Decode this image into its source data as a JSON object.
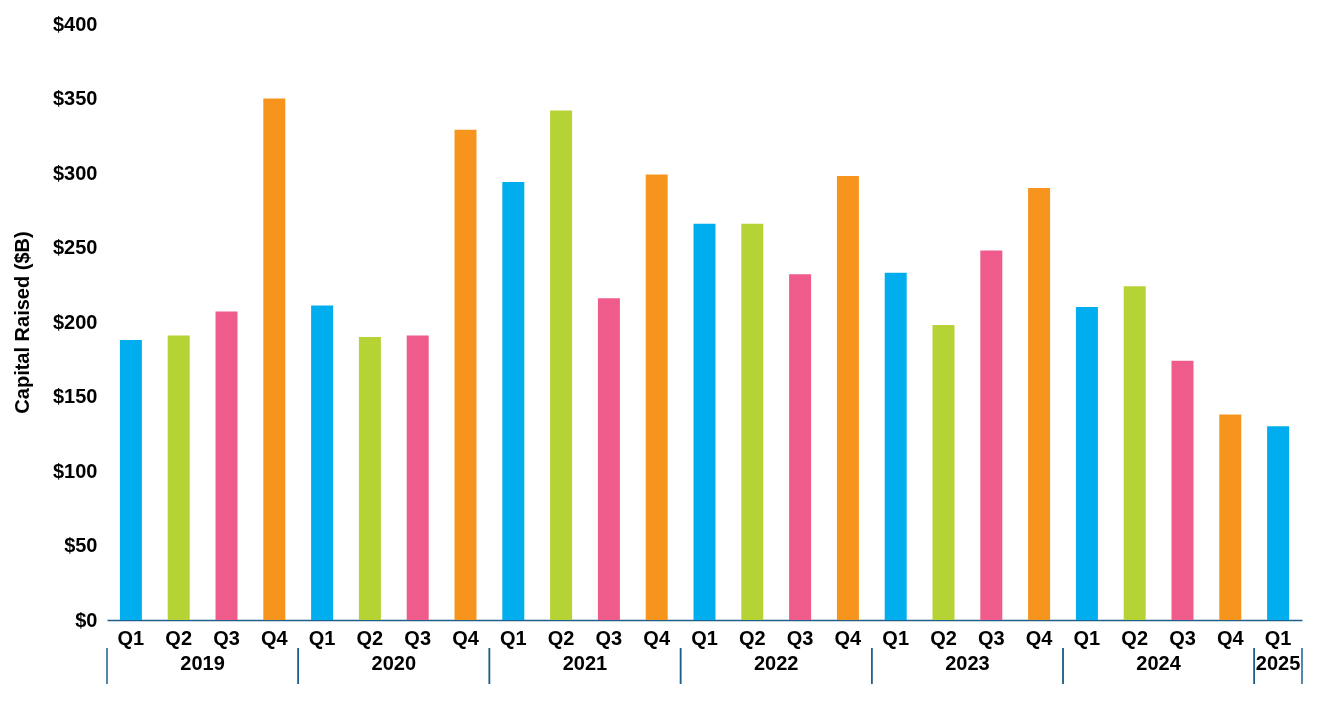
{
  "chart_data": {
    "type": "bar",
    "ylabel": "Capital Raised ($B)",
    "categories": [
      "Q1",
      "Q2",
      "Q3",
      "Q4",
      "Q1",
      "Q2",
      "Q3",
      "Q4",
      "Q1",
      "Q2",
      "Q3",
      "Q4",
      "Q1",
      "Q2",
      "Q3",
      "Q4",
      "Q1",
      "Q2",
      "Q3",
      "Q4",
      "Q1",
      "Q2",
      "Q3",
      "Q4",
      "Q1"
    ],
    "values": [
      188,
      191,
      207,
      350,
      211,
      190,
      191,
      329,
      294,
      342,
      216,
      299,
      266,
      266,
      232,
      298,
      233,
      198,
      248,
      290,
      210,
      224,
      174,
      138,
      130
    ],
    "colors": [
      "#00aeef",
      "#b5d334",
      "#ef5b8a",
      "#f7941d",
      "#00aeef",
      "#b5d334",
      "#ef5b8a",
      "#f7941d",
      "#00aeef",
      "#b5d334",
      "#ef5b8a",
      "#f7941d",
      "#00aeef",
      "#b5d334",
      "#ef5b8a",
      "#f7941d",
      "#00aeef",
      "#b5d334",
      "#ef5b8a",
      "#f7941d",
      "#00aeef",
      "#b5d334",
      "#ef5b8a",
      "#f7941d",
      "#00aeef"
    ],
    "ylim": [
      0,
      400
    ],
    "yticks": [
      {
        "value": 0,
        "label": "$0"
      },
      {
        "value": 50,
        "label": "$50"
      },
      {
        "value": 100,
        "label": "$100"
      },
      {
        "value": 150,
        "label": "$150"
      },
      {
        "value": 200,
        "label": "$200"
      },
      {
        "value": 250,
        "label": "$250"
      },
      {
        "value": 300,
        "label": "$300"
      },
      {
        "value": 350,
        "label": "$350"
      },
      {
        "value": 400,
        "label": "$400"
      }
    ],
    "annotations": [
      "2019",
      "2020",
      "2021",
      "2022",
      "2023",
      "2024",
      "2025"
    ],
    "grid": false
  }
}
